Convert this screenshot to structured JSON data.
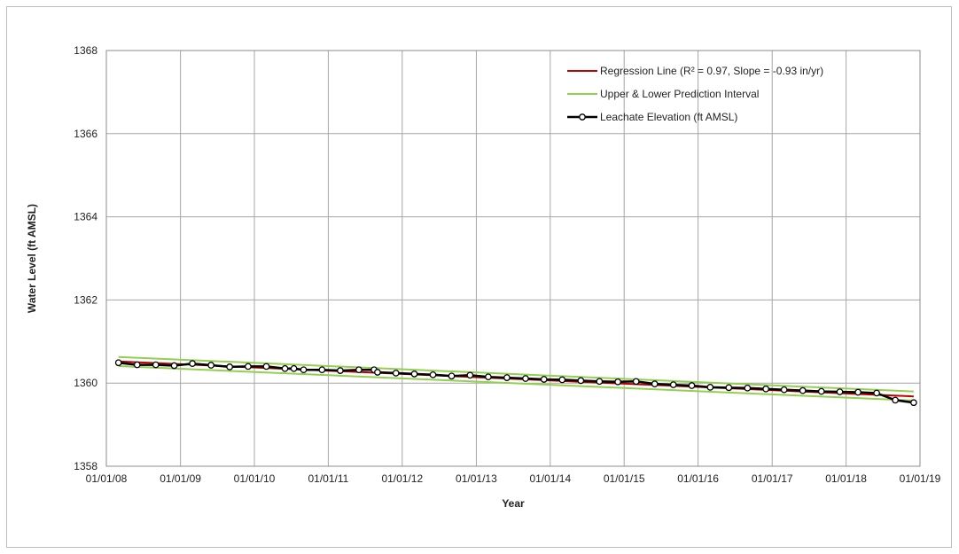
{
  "chart_data": {
    "type": "line",
    "xlabel": "Year",
    "ylabel": "Water Level (ft AMSL)",
    "x_ticks": [
      "01/01/08",
      "01/01/09",
      "01/01/10",
      "01/01/11",
      "01/01/12",
      "01/01/13",
      "01/01/14",
      "01/01/15",
      "01/01/16",
      "01/01/17",
      "01/01/18",
      "01/01/19"
    ],
    "y_ticks": [
      "1358",
      "1360",
      "1362",
      "1364",
      "1366",
      "1368"
    ],
    "xlim": [
      "2008-01-01",
      "2019-01-01"
    ],
    "ylim": [
      1358,
      1368
    ],
    "grid": true,
    "legend_position": "top-right",
    "colors": {
      "regression": "#c00000",
      "prediction": "#92d050",
      "leachate": "#000000",
      "grid": "#a6a6a6"
    },
    "series": [
      {
        "name": "Regression Line (R² = 0.97, Slope = -0.93 in/yr)",
        "kind": "regression",
        "x": [
          "2008-03-01",
          "2018-12-01"
        ],
        "y": [
          1360.52,
          1359.68
        ]
      },
      {
        "name": "Upper & Lower Prediction Interval",
        "kind": "prediction_upper",
        "x": [
          "2008-03-01",
          "2018-12-01"
        ],
        "y": [
          1360.63,
          1359.8
        ]
      },
      {
        "name": "",
        "kind": "prediction_lower",
        "x": [
          "2008-03-01",
          "2018-12-01"
        ],
        "y": [
          1360.41,
          1359.58
        ]
      },
      {
        "name": "Leachate Elevation (ft AMSL)",
        "kind": "leachate",
        "x": [
          "2008-03-01",
          "2008-06-01",
          "2008-09-01",
          "2008-12-01",
          "2009-03-01",
          "2009-06-01",
          "2009-09-01",
          "2009-12-01",
          "2010-03-01",
          "2010-06-01",
          "2010-07-15",
          "2010-09-01",
          "2010-12-01",
          "2011-03-01",
          "2011-06-01",
          "2011-08-15",
          "2011-09-01",
          "2011-12-01",
          "2012-03-01",
          "2012-06-01",
          "2012-09-01",
          "2012-12-01",
          "2013-03-01",
          "2013-06-01",
          "2013-09-01",
          "2013-12-01",
          "2014-03-01",
          "2014-06-01",
          "2014-09-01",
          "2014-12-01",
          "2015-03-01",
          "2015-06-01",
          "2015-09-01",
          "2015-12-01",
          "2016-03-01",
          "2016-06-01",
          "2016-09-01",
          "2016-12-01",
          "2017-03-01",
          "2017-06-01",
          "2017-09-01",
          "2017-12-01",
          "2018-03-01",
          "2018-06-01",
          "2018-09-01",
          "2018-12-01"
        ],
        "y": [
          1360.49,
          1360.44,
          1360.44,
          1360.42,
          1360.47,
          1360.43,
          1360.39,
          1360.4,
          1360.4,
          1360.35,
          1360.35,
          1360.32,
          1360.32,
          1360.3,
          1360.32,
          1360.32,
          1360.26,
          1360.24,
          1360.22,
          1360.2,
          1360.17,
          1360.19,
          1360.15,
          1360.13,
          1360.11,
          1360.09,
          1360.08,
          1360.06,
          1360.04,
          1360.03,
          1360.04,
          1359.98,
          1359.96,
          1359.94,
          1359.9,
          1359.89,
          1359.88,
          1359.86,
          1359.84,
          1359.82,
          1359.8,
          1359.79,
          1359.78,
          1359.76,
          1359.59,
          1359.53
        ]
      }
    ]
  }
}
